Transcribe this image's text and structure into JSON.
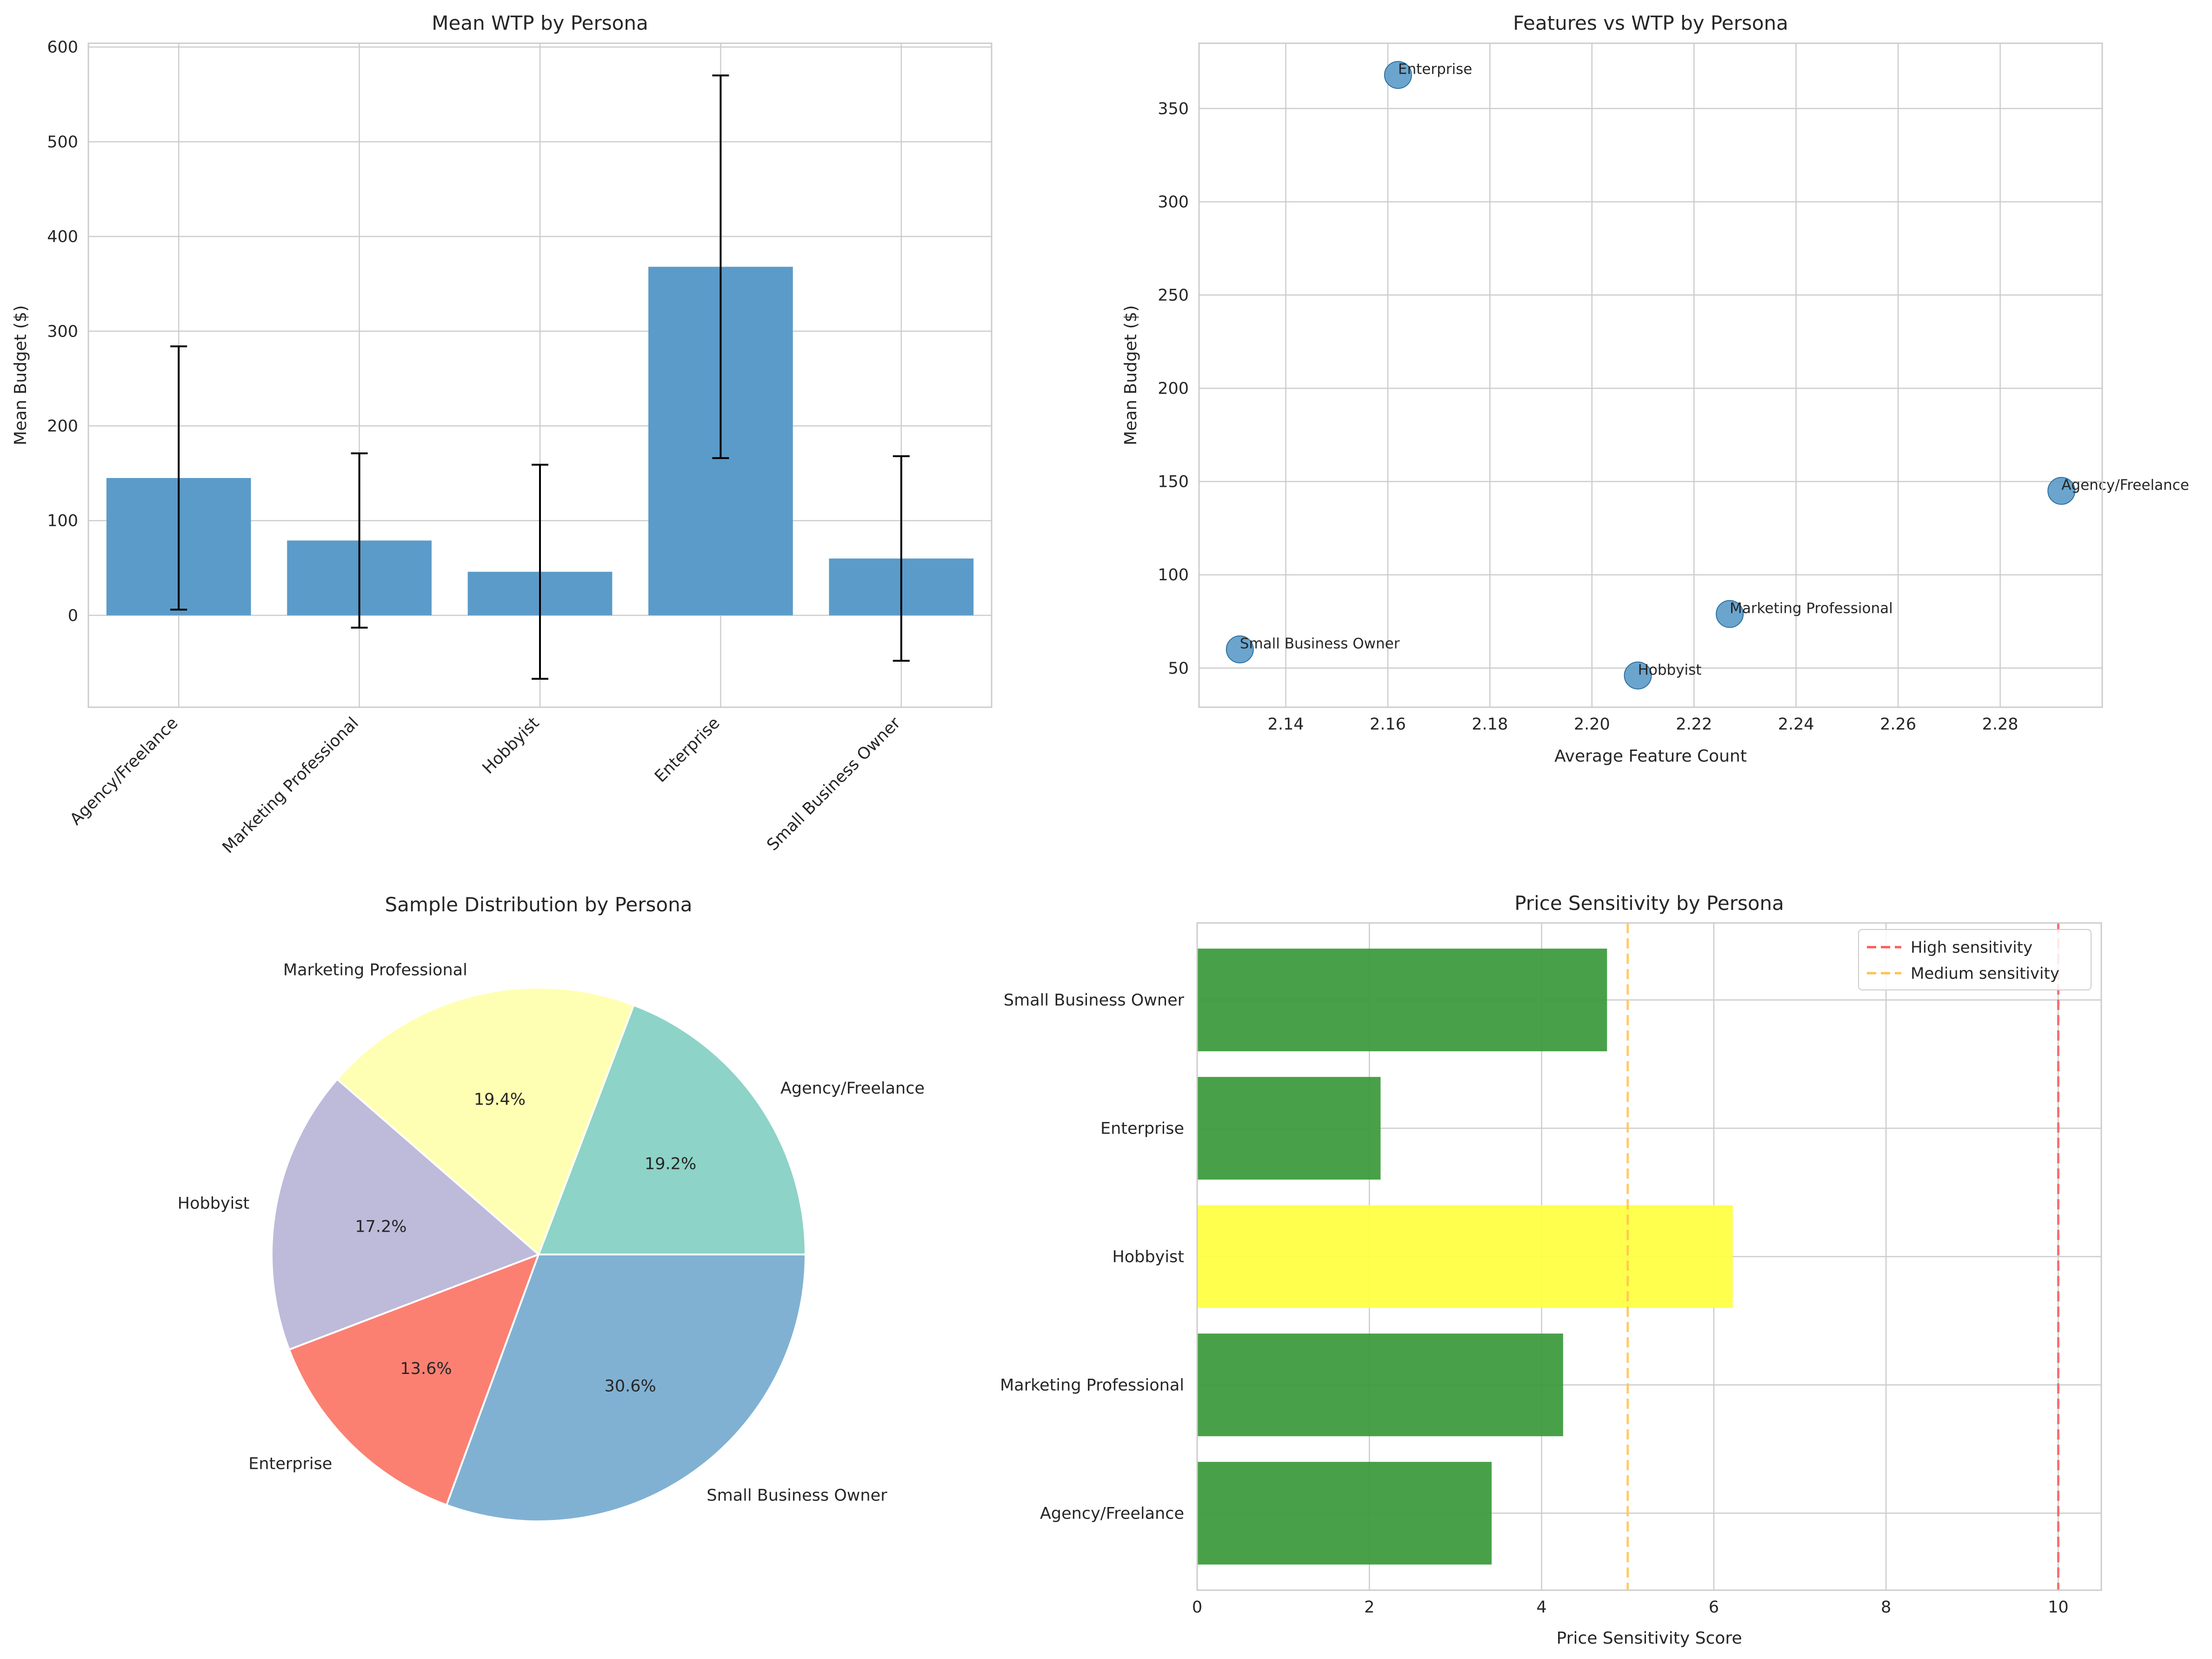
{
  "chart_data": [
    {
      "type": "bar",
      "title": "Mean WTP by Persona",
      "xlabel": "",
      "ylabel": "Mean Budget ($)",
      "categories": [
        "Agency/Freelance",
        "Marketing Professional",
        "Hobbyist",
        "Enterprise",
        "Small Business Owner"
      ],
      "values": [
        145,
        79,
        46,
        368,
        60
      ],
      "errors": [
        139,
        92,
        113,
        202,
        108
      ],
      "ylim": [
        -97,
        604
      ],
      "yticks": [
        0,
        100,
        200,
        300,
        400,
        500,
        600
      ],
      "color": "#5b9bc9",
      "grid": true
    },
    {
      "type": "scatter",
      "title": "Features vs WTP by Persona",
      "xlabel": "Average Feature Count",
      "ylabel": "Mean Budget ($)",
      "points": [
        {
          "label": "Agency/Freelance",
          "x": 2.292,
          "y": 145
        },
        {
          "label": "Marketing Professional",
          "x": 2.227,
          "y": 79
        },
        {
          "label": "Hobbyist",
          "x": 2.209,
          "y": 46
        },
        {
          "label": "Enterprise",
          "x": 2.162,
          "y": 368
        },
        {
          "label": "Small Business Owner",
          "x": 2.131,
          "y": 60
        }
      ],
      "xlim": [
        2.123,
        2.3
      ],
      "ylim": [
        29,
        385
      ],
      "xticks": [
        2.14,
        2.16,
        2.18,
        2.2,
        2.22,
        2.24,
        2.26,
        2.28
      ],
      "yticks": [
        50,
        100,
        150,
        200,
        250,
        300,
        350
      ],
      "color": "#5b9bc9",
      "grid": true
    },
    {
      "type": "pie",
      "title": "Sample Distribution by Persona",
      "slices": [
        {
          "label": "Agency/Freelance",
          "value": 19.2,
          "pct_label": "19.2%",
          "color": "#8dd3c7"
        },
        {
          "label": "Marketing Professional",
          "value": 19.4,
          "pct_label": "19.4%",
          "color": "#ffffb3"
        },
        {
          "label": "Hobbyist",
          "value": 17.2,
          "pct_label": "17.2%",
          "color": "#bebada"
        },
        {
          "label": "Enterprise",
          "value": 13.6,
          "pct_label": "13.6%",
          "color": "#fb8072"
        },
        {
          "label": "Small Business Owner",
          "value": 30.6,
          "pct_label": "30.6%",
          "color": "#80b1d3"
        }
      ]
    },
    {
      "type": "bar",
      "orientation": "horizontal",
      "title": "Price Sensitivity by Persona",
      "xlabel": "Price Sensitivity Score",
      "ylabel": "",
      "categories": [
        "Agency/Freelance",
        "Marketing Professional",
        "Hobbyist",
        "Enterprise",
        "Small Business Owner"
      ],
      "values": [
        3.42,
        4.25,
        6.22,
        2.13,
        4.76
      ],
      "colors": [
        "#3a9a3a",
        "#3a9a3a",
        "#ffff40",
        "#3a9a3a",
        "#3a9a3a"
      ],
      "xlim": [
        0,
        10.5
      ],
      "xticks": [
        0,
        2,
        4,
        6,
        8,
        10
      ],
      "reference_lines": [
        {
          "x": 10,
          "label": "High sensitivity",
          "color": "#ff5a5a"
        },
        {
          "x": 5,
          "label": "Medium sensitivity",
          "color": "#ffc34d"
        }
      ],
      "legend": "top-right",
      "grid": true
    }
  ]
}
